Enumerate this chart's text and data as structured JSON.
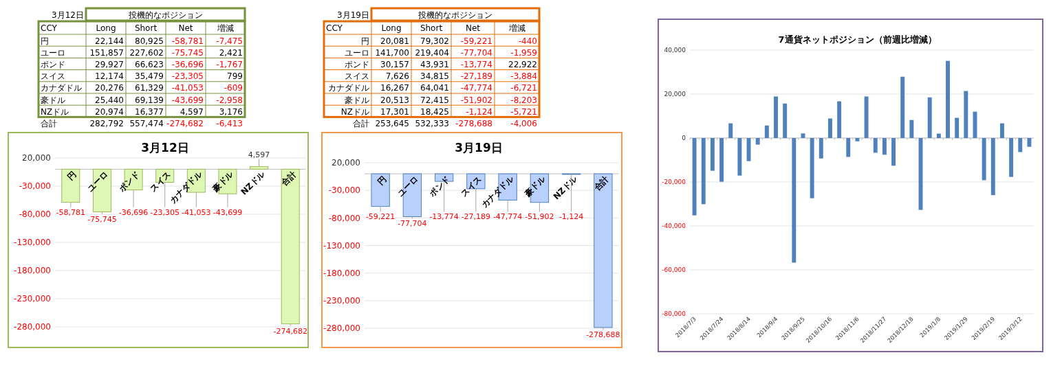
{
  "chart_data": [
    {
      "type": "heatmap",
      "subtitle": "3月12日",
      "title": "投機的なポジション",
      "ylabel": "CCY",
      "categories": [
        "Long",
        "Short",
        "Net",
        "増減"
      ],
      "y_categories": [
        "円",
        "ユーロ",
        "ポンド",
        "スイス",
        "カナダドル",
        "豪ドル",
        "NZドル",
        "合計"
      ],
      "cells": [
        [
          22144,
          80925,
          -58781,
          -7475
        ],
        [
          151857,
          227602,
          -75745,
          2421
        ],
        [
          29927,
          66623,
          -36696,
          -1767
        ],
        [
          12174,
          35479,
          -23305,
          799
        ],
        [
          20276,
          61329,
          -41053,
          -609
        ],
        [
          25440,
          69139,
          -43699,
          -2958
        ],
        [
          20974,
          16377,
          4597,
          3176
        ],
        [
          282792,
          557474,
          -274682,
          -6413
        ]
      ],
      "cell_labels": [
        [
          "22,144",
          "80,925",
          "-58,781",
          "-7,475"
        ],
        [
          "151,857",
          "227,602",
          "-75,745",
          "2,421"
        ],
        [
          "29,927",
          "66,623",
          "-36,696",
          "-1,767"
        ],
        [
          "12,174",
          "35,479",
          "-23,305",
          "799"
        ],
        [
          "20,276",
          "61,329",
          "-41,053",
          "-609"
        ],
        [
          "25,440",
          "69,139",
          "-43,699",
          "-2,958"
        ],
        [
          "20,974",
          "16,377",
          "4,597",
          "3,176"
        ],
        [
          "282,792",
          "557,474",
          "-274,682",
          "-6,413"
        ]
      ]
    },
    {
      "type": "heatmap",
      "subtitle": "3月19日",
      "title": "投機的なポジション",
      "ylabel": "CCY",
      "categories": [
        "Long",
        "Short",
        "Net",
        "増減"
      ],
      "y_categories": [
        "円",
        "ユーロ",
        "ポンド",
        "スイス",
        "カナダドル",
        "豪ドル",
        "NZドル",
        "合計"
      ],
      "cells": [
        [
          20081,
          79302,
          -59221,
          -440
        ],
        [
          141700,
          219404,
          -77704,
          -1959
        ],
        [
          30157,
          43931,
          -13774,
          22922
        ],
        [
          7626,
          34815,
          -27189,
          -3884
        ],
        [
          16267,
          64041,
          -47774,
          -6721
        ],
        [
          20513,
          72415,
          -51902,
          -8203
        ],
        [
          17301,
          18425,
          -1124,
          -5721
        ],
        [
          253645,
          532333,
          -278688,
          -4006
        ]
      ],
      "cell_labels": [
        [
          "20,081",
          "79,302",
          "-59,221",
          "-440"
        ],
        [
          "141,700",
          "219,404",
          "-77,704",
          "-1,959"
        ],
        [
          "30,157",
          "43,931",
          "-13,774",
          "22,922"
        ],
        [
          "7,626",
          "34,815",
          "-27,189",
          "-3,884"
        ],
        [
          "16,267",
          "64,041",
          "-47,774",
          "-6,721"
        ],
        [
          "20,513",
          "72,415",
          "-51,902",
          "-8,203"
        ],
        [
          "17,301",
          "18,425",
          "-1,124",
          "-5,721"
        ],
        [
          "253,645",
          "532,333",
          "-278,688",
          "-4,006"
        ]
      ]
    },
    {
      "type": "bar",
      "title": "7通貨ネットポジション（前週比増減）",
      "color": "#4f81bd",
      "grid": "y",
      "categories": [
        "2018/7/3",
        null,
        null,
        "2018/7/24",
        null,
        null,
        "2018/8/14",
        null,
        null,
        "2018/9/4",
        null,
        null,
        "2018/9/25",
        null,
        null,
        "2018/10/16",
        null,
        null,
        "2018/11/6",
        null,
        null,
        "2018/11/27",
        null,
        null,
        "2018/12/18",
        null,
        null,
        "2019/1/8",
        null,
        null,
        "2019/1/29",
        null,
        null,
        "2019/2/19",
        null,
        null,
        "2019/3/12",
        null
      ],
      "values": [
        -35200,
        -30100,
        -14900,
        -19900,
        6700,
        -17100,
        -10500,
        -3000,
        5700,
        18900,
        15700,
        -56700,
        2100,
        -27400,
        -9300,
        8900,
        16700,
        -8600,
        -1500,
        18900,
        -6700,
        -7600,
        -12600,
        27900,
        8200,
        -32700,
        18500,
        2000,
        35100,
        9200,
        21400,
        12000,
        -19200,
        -26000,
        6700,
        -17700,
        -6400,
        -4000
      ],
      "ylim": [
        -80000,
        40000
      ],
      "yticks": [
        {
          "value": 40000,
          "label": "40,000"
        },
        {
          "value": 20000,
          "label": "20,000"
        },
        {
          "value": 0,
          "label": "0"
        },
        {
          "value": -20000,
          "label": "-20,000"
        },
        {
          "value": -40000,
          "label": "-40,000"
        },
        {
          "value": -60000,
          "label": "-60,000"
        },
        {
          "value": -80000,
          "label": "-80,000"
        }
      ]
    },
    {
      "type": "bar",
      "title": "3月12日",
      "color": "#dff7b4",
      "grid": "y",
      "categories": [
        "円",
        "ユーロ",
        "ポンド",
        "スイス",
        "カナダドル",
        "豪ドル",
        "NZドル",
        "合計"
      ],
      "values": [
        -58781,
        -75745,
        -36696,
        -23305,
        -41053,
        -43699,
        4597,
        -274682
      ],
      "value_labels": [
        "-58,781",
        "-75,745",
        "-36,696",
        "-23,305",
        "-41,053",
        "-43,699",
        "4,597",
        "-274,682"
      ],
      "ylim": [
        -280000,
        20000
      ],
      "yticks": [
        {
          "value": 20000,
          "label": "20,000"
        },
        {
          "value": -30000,
          "label": "-30,000"
        },
        {
          "value": -80000,
          "label": "-80,000"
        },
        {
          "value": -130000,
          "label": "-130,000"
        },
        {
          "value": -180000,
          "label": "-180,000"
        },
        {
          "value": -230000,
          "label": "-230,000"
        },
        {
          "value": -280000,
          "label": "-280,000"
        }
      ]
    },
    {
      "type": "bar",
      "title": "3月19日",
      "color": "#b8d0fb",
      "grid": "y",
      "categories": [
        "円",
        "ユーロ",
        "ポンド",
        "スイス",
        "カナダドル",
        "豪ドル",
        "NZドル",
        "合計"
      ],
      "values": [
        -59221,
        -77704,
        -13774,
        -27189,
        -47774,
        -51902,
        -1124,
        -278688
      ],
      "value_labels": [
        "-59,221",
        "-77,704",
        "-13,774",
        "-27,189",
        "-47,774",
        "-51,902",
        "-1,124",
        "-278,688"
      ],
      "ylim": [
        -280000,
        20000
      ],
      "yticks": [
        {
          "value": 20000,
          "label": "20,000"
        },
        {
          "value": -30000,
          "label": "-30,000"
        },
        {
          "value": -80000,
          "label": "-80,000"
        },
        {
          "value": -130000,
          "label": "-130,000"
        },
        {
          "value": -180000,
          "label": "-180,000"
        },
        {
          "value": -230000,
          "label": "-230,000"
        },
        {
          "value": -280000,
          "label": "-280,000"
        }
      ]
    }
  ]
}
